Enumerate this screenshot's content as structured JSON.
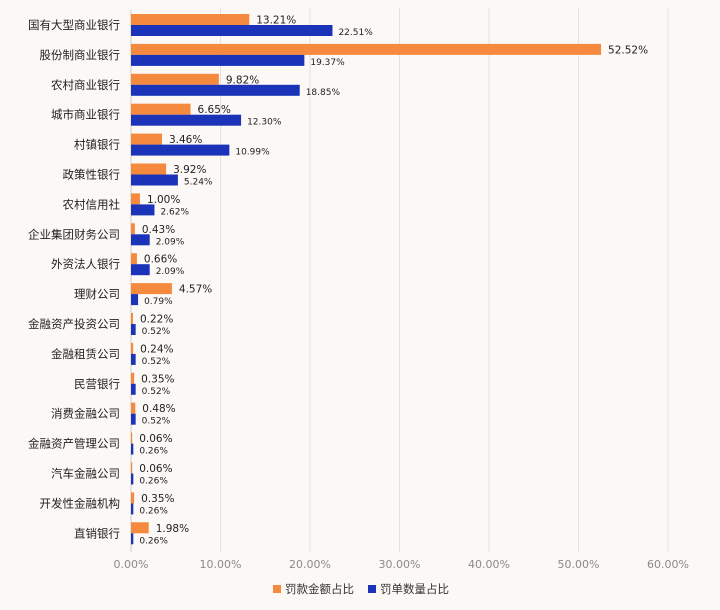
{
  "chart_data": {
    "type": "bar",
    "orientation": "horizontal",
    "categories": [
      "国有大型商业银行",
      "股份制商业银行",
      "农村商业银行",
      "城市商业银行",
      "村镇银行",
      "政策性银行",
      "农村信用社",
      "企业集团财务公司",
      "外资法人银行",
      "理财公司",
      "金融资产投资公司",
      "金融租赁公司",
      "民营银行",
      "消费金融公司",
      "金融资产管理公司",
      "汽车金融公司",
      "开发性金融机构",
      "直销银行"
    ],
    "series": [
      {
        "name": "罚款金额占比",
        "color": "#f5893e",
        "values": [
          13.21,
          52.52,
          9.82,
          6.65,
          3.46,
          3.92,
          1.0,
          0.43,
          0.66,
          4.57,
          0.22,
          0.24,
          0.35,
          0.48,
          0.06,
          0.06,
          0.35,
          1.98
        ],
        "labels": [
          "13.21%",
          "52.52%",
          "9.82%",
          "6.65%",
          "3.46%",
          "3.92%",
          "1.00%",
          "0.43%",
          "0.66%",
          "4.57%",
          "0.22%",
          "0.24%",
          "0.35%",
          "0.48%",
          "0.06%",
          "0.06%",
          "0.35%",
          "1.98%"
        ]
      },
      {
        "name": "罚单数量占比",
        "color": "#1a33b8",
        "values": [
          22.51,
          19.37,
          18.85,
          12.3,
          10.99,
          5.24,
          2.62,
          2.09,
          2.09,
          0.79,
          0.52,
          0.52,
          0.52,
          0.52,
          0.26,
          0.26,
          0.26,
          0.26
        ],
        "labels": [
          "22.51%",
          "19.37%",
          "18.85%",
          "12.30%",
          "10.99%",
          "5.24%",
          "2.62%",
          "2.09%",
          "2.09%",
          "0.79%",
          "0.52%",
          "0.52%",
          "0.52%",
          "0.52%",
          "0.26%",
          "0.26%",
          "0.26%",
          "0.26%"
        ]
      }
    ],
    "xlim": [
      0,
      60
    ],
    "xticks": [
      0,
      10,
      20,
      30,
      40,
      50,
      60
    ],
    "xtick_labels": [
      "0.00%",
      "10.00%",
      "20.00%",
      "30.00%",
      "40.00%",
      "50.00%",
      "60.00%"
    ],
    "grid": true,
    "legend_position": "bottom"
  }
}
